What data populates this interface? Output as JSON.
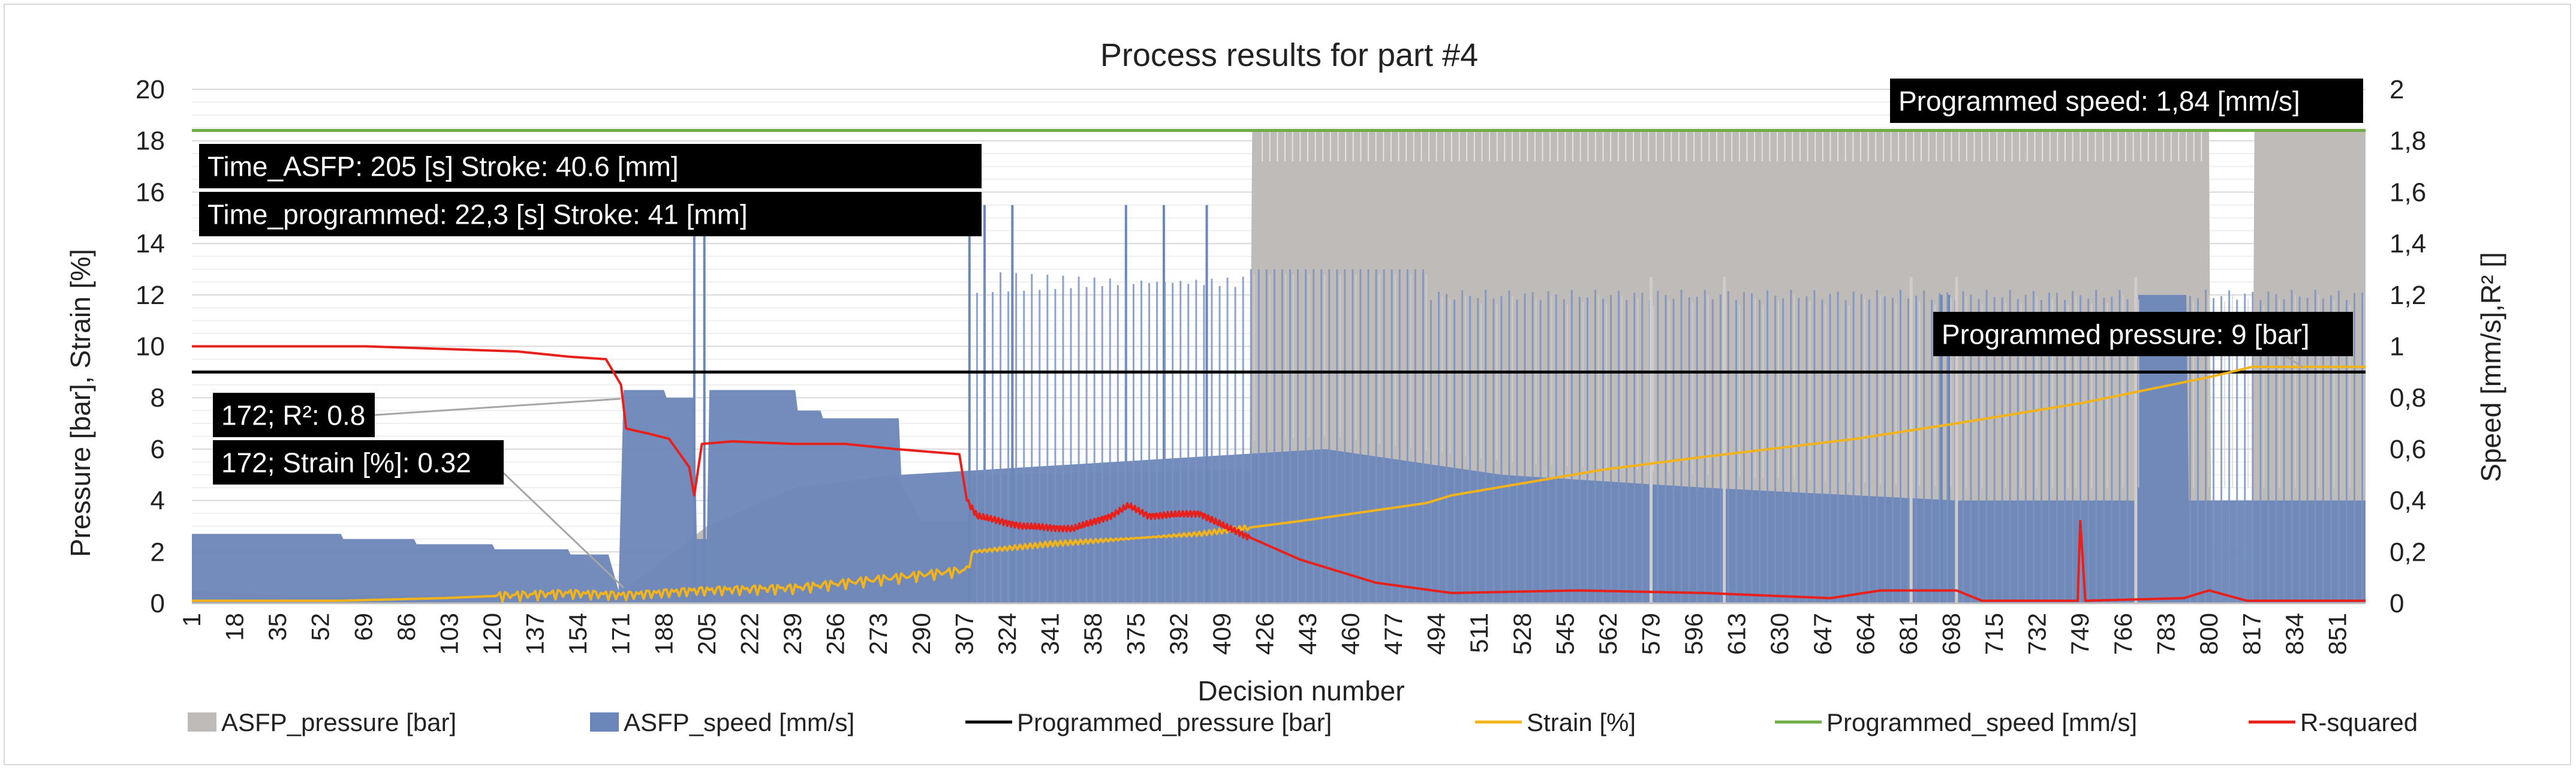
{
  "chart_data": {
    "type": "combo",
    "title": "Process results for part #4",
    "xlabel": "Decision number",
    "ylabel_left": "Pressure [bar], Strain [%]",
    "ylabel_right": "Speed [mm/s],R² []",
    "xlim": [
      1,
      862
    ],
    "ylim_left": [
      0,
      20
    ],
    "ylim_right": [
      0,
      2
    ],
    "yticks_left": [
      "0",
      "2",
      "4",
      "6",
      "8",
      "10",
      "12",
      "14",
      "16",
      "18",
      "20"
    ],
    "yticks_right": [
      "0",
      "0,2",
      "0,4",
      "0,6",
      "0,8",
      "1",
      "1,2",
      "1,4",
      "1,6",
      "1,8",
      "2"
    ],
    "xticks": [
      1,
      18,
      35,
      52,
      69,
      86,
      103,
      120,
      137,
      154,
      171,
      188,
      205,
      222,
      239,
      256,
      273,
      290,
      307,
      324,
      341,
      358,
      375,
      392,
      409,
      426,
      443,
      460,
      477,
      494,
      511,
      528,
      545,
      562,
      579,
      596,
      613,
      630,
      647,
      664,
      681,
      698,
      715,
      732,
      749,
      766,
      783,
      800,
      817,
      834,
      851
    ],
    "grid": true,
    "legend_position": "bottom",
    "legend": [
      {
        "label": "ASFP_pressure [bar]",
        "kind": "area",
        "color": "#bfbbb8"
      },
      {
        "label": "ASFP_speed [mm/s]",
        "kind": "area",
        "color": "#6b86b8"
      },
      {
        "label": "Programmed_pressure [bar]",
        "kind": "line",
        "color": "#000000"
      },
      {
        "label": "Strain [%]",
        "kind": "line",
        "color": "#f2b31b"
      },
      {
        "label": "Programmed_speed [mm/s]",
        "kind": "line",
        "color": "#70ad47"
      },
      {
        "label": "R-squared",
        "kind": "line",
        "color": "#e8201c"
      }
    ],
    "series": [
      {
        "name": "ASFP_pressure [bar]",
        "axis": "left",
        "type": "area",
        "color": "#bfbbb8",
        "points": [
          [
            1,
            0.5
          ],
          [
            40,
            0.3
          ],
          [
            100,
            0.3
          ],
          [
            171,
            0.4
          ],
          [
            205,
            3.0
          ],
          [
            240,
            4.5
          ],
          [
            280,
            5.0
          ],
          [
            290,
            3.2
          ],
          [
            309,
            3.2
          ],
          [
            310,
            5.0
          ],
          [
            420,
            5.2
          ],
          [
            421,
            18.4
          ],
          [
            800,
            18.4
          ],
          [
            801,
            0
          ],
          [
            817,
            0
          ],
          [
            818,
            18.4
          ],
          [
            862,
            18.4
          ]
        ]
      },
      {
        "name": "ASFP_speed [mm/s]",
        "axis": "right",
        "type": "area",
        "color": "#6b86b8",
        "points": [
          [
            1,
            0.27
          ],
          [
            60,
            0.27
          ],
          [
            61,
            0.25
          ],
          [
            89,
            0.25
          ],
          [
            90,
            0.23
          ],
          [
            120,
            0.23
          ],
          [
            121,
            0.21
          ],
          [
            150,
            0.21
          ],
          [
            151,
            0.19
          ],
          [
            166,
            0.19
          ],
          [
            170,
            0.05
          ],
          [
            172,
            0.83
          ],
          [
            188,
            0.83
          ],
          [
            189,
            0.8
          ],
          [
            200,
            0.8
          ],
          [
            201,
            0.25
          ],
          [
            205,
            0.25
          ],
          [
            206,
            0.83
          ],
          [
            240,
            0.83
          ],
          [
            241,
            0.75
          ],
          [
            250,
            0.75
          ],
          [
            251,
            0.72
          ],
          [
            281,
            0.72
          ],
          [
            282,
            0.5
          ],
          [
            450,
            0.6
          ],
          [
            520,
            0.5
          ],
          [
            600,
            0.45
          ],
          [
            700,
            0.4
          ],
          [
            771,
            0.4
          ],
          [
            772,
            1.2
          ],
          [
            791,
            1.2
          ],
          [
            792,
            0.4
          ],
          [
            862,
            0.4
          ]
        ]
      },
      {
        "name": "Programmed_pressure [bar]",
        "axis": "left",
        "type": "line",
        "color": "#000000",
        "points": [
          [
            1,
            9
          ],
          [
            862,
            9
          ]
        ]
      },
      {
        "name": "Strain [%]",
        "axis": "left",
        "type": "line",
        "color": "#f2b31b",
        "points": [
          [
            1,
            0.1
          ],
          [
            60,
            0.1
          ],
          [
            100,
            0.2
          ],
          [
            150,
            0.4
          ],
          [
            172,
            0.32
          ],
          [
            200,
            0.5
          ],
          [
            240,
            0.6
          ],
          [
            280,
            1.0
          ],
          [
            308,
            1.3
          ],
          [
            310,
            2.0
          ],
          [
            340,
            2.3
          ],
          [
            400,
            2.7
          ],
          [
            440,
            3.2
          ],
          [
            490,
            3.9
          ],
          [
            500,
            4.2
          ],
          [
            560,
            5.2
          ],
          [
            600,
            5.7
          ],
          [
            660,
            6.4
          ],
          [
            700,
            7.0
          ],
          [
            750,
            7.8
          ],
          [
            800,
            8.8
          ],
          [
            817,
            9.2
          ],
          [
            862,
            9.2
          ]
        ]
      },
      {
        "name": "Programmed_speed [mm/s]",
        "axis": "right",
        "type": "line",
        "color": "#70ad47",
        "points": [
          [
            1,
            1.84
          ],
          [
            862,
            1.84
          ]
        ]
      },
      {
        "name": "R-squared",
        "axis": "right",
        "type": "line",
        "color": "#e8201c",
        "points": [
          [
            1,
            1.0
          ],
          [
            70,
            1.0
          ],
          [
            100,
            0.99
          ],
          [
            130,
            0.98
          ],
          [
            150,
            0.96
          ],
          [
            165,
            0.95
          ],
          [
            171,
            0.85
          ],
          [
            173,
            0.68
          ],
          [
            182,
            0.66
          ],
          [
            190,
            0.64
          ],
          [
            198,
            0.53
          ],
          [
            200,
            0.42
          ],
          [
            203,
            0.62
          ],
          [
            215,
            0.63
          ],
          [
            240,
            0.62
          ],
          [
            260,
            0.62
          ],
          [
            280,
            0.6
          ],
          [
            305,
            0.58
          ],
          [
            308,
            0.4
          ],
          [
            312,
            0.34
          ],
          [
            330,
            0.3
          ],
          [
            350,
            0.29
          ],
          [
            365,
            0.34
          ],
          [
            372,
            0.38
          ],
          [
            380,
            0.34
          ],
          [
            400,
            0.35
          ],
          [
            410,
            0.3
          ],
          [
            440,
            0.17
          ],
          [
            470,
            0.08
          ],
          [
            500,
            0.04
          ],
          [
            550,
            0.05
          ],
          [
            600,
            0.04
          ],
          [
            650,
            0.02
          ],
          [
            670,
            0.05
          ],
          [
            700,
            0.05
          ],
          [
            710,
            0.01
          ],
          [
            748,
            0.01
          ],
          [
            749,
            0.32
          ],
          [
            751,
            0.01
          ],
          [
            790,
            0.02
          ],
          [
            800,
            0.05
          ],
          [
            815,
            0.01
          ],
          [
            862,
            0.01
          ]
        ]
      }
    ],
    "annotations": [
      {
        "id": "speed_prog",
        "text": "Programmed speed: 1,84 [mm/s]"
      },
      {
        "id": "time_asfp",
        "text": "Time_ASFP: 205 [s] Stroke: 40.6 [mm]"
      },
      {
        "id": "time_prog",
        "text": "Time_programmed: 22,3 [s] Stroke: 41 [mm]"
      },
      {
        "id": "pressure_prog",
        "text": "Programmed pressure: 9 [bar]"
      },
      {
        "id": "r2_note",
        "text": "172; R²: 0.8"
      },
      {
        "id": "strain_note",
        "text": "172; Strain [%]: 0.32"
      }
    ]
  }
}
